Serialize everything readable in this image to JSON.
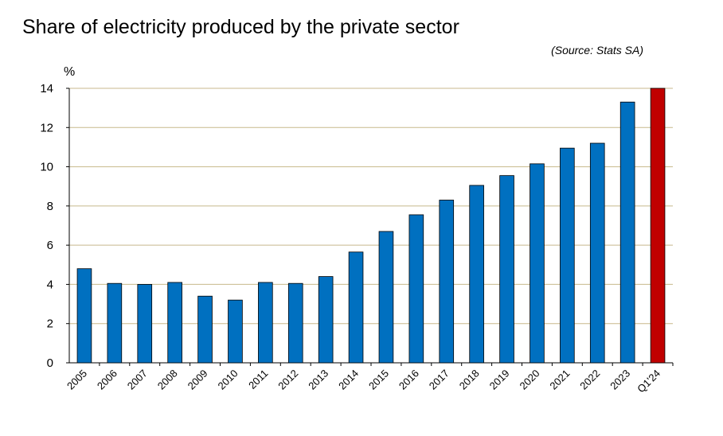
{
  "chart_data": {
    "type": "bar",
    "title": "Share of electricity produced by the private sector",
    "source": "(Source: Stats SA)",
    "ylabel": "%",
    "ylim": [
      0,
      14
    ],
    "yticks": [
      "0",
      "2",
      "4",
      "6",
      "8",
      "10",
      "12",
      "14"
    ],
    "grid": true,
    "categories": [
      "2005",
      "2006",
      "2007",
      "2008",
      "2009",
      "2010",
      "2011",
      "2012",
      "2013",
      "2014",
      "2015",
      "2016",
      "2017",
      "2018",
      "2019",
      "2020",
      "2021",
      "2022",
      "2023",
      "Q1'24"
    ],
    "values": [
      4.8,
      4.05,
      4.0,
      4.1,
      3.4,
      3.2,
      4.1,
      4.05,
      4.4,
      5.65,
      6.7,
      7.55,
      8.3,
      9.05,
      9.55,
      10.15,
      10.95,
      11.2,
      13.3,
      14.0
    ],
    "colors": {
      "default": "#0070c0",
      "highlight": "#c00000",
      "grid": "#c8b98c"
    },
    "highlight_categories": [
      "Q1'24"
    ]
  }
}
